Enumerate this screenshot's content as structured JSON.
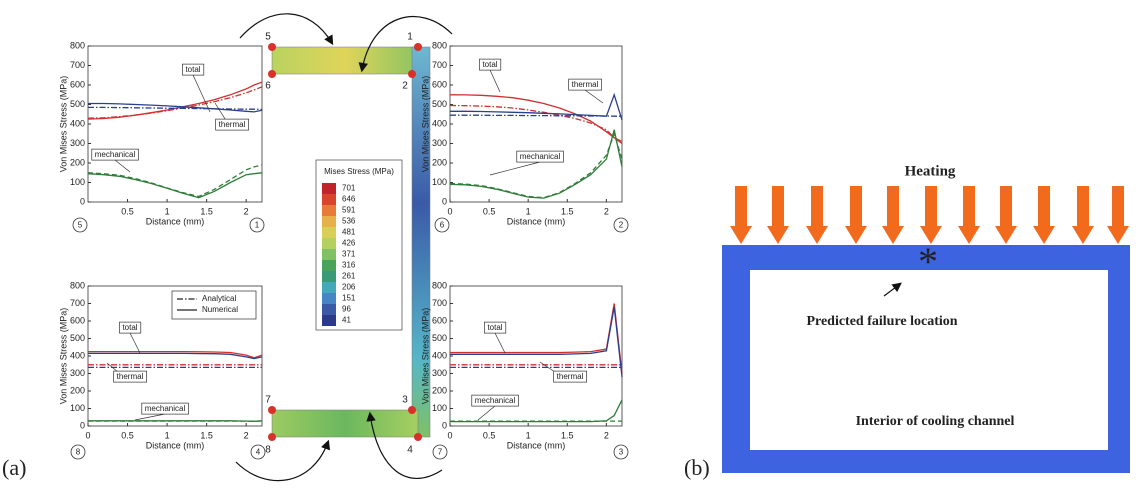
{
  "chart_data": [
    {
      "type": "line",
      "xlabel": "Distance (mm)",
      "ylabel": "Von Mises Stress (MPa)",
      "xlim": [
        0,
        2.2
      ],
      "ylim": [
        0,
        800
      ],
      "xticks": [
        0.5,
        1,
        1.5,
        2
      ],
      "yticks": [
        0,
        100,
        200,
        300,
        400,
        500,
        600,
        700,
        800
      ],
      "x": [
        0,
        0.2,
        0.4,
        0.6,
        0.8,
        1,
        1.2,
        1.4,
        1.6,
        1.8,
        2,
        2.1,
        2.2
      ],
      "series": [
        {
          "color": "#d03030",
          "style": "solid",
          "values": [
            425,
            428,
            435,
            445,
            458,
            472,
            488,
            505,
            525,
            550,
            580,
            600,
            615
          ]
        },
        {
          "color": "#d03030",
          "style": "dashdot",
          "values": [
            430,
            432,
            438,
            446,
            456,
            468,
            482,
            497,
            515,
            535,
            560,
            575,
            590
          ]
        },
        {
          "color": "#2b3f8f",
          "style": "solid",
          "values": [
            505,
            505,
            503,
            500,
            497,
            493,
            488,
            483,
            478,
            472,
            465,
            462,
            470
          ]
        },
        {
          "color": "#2b3f8f",
          "style": "dashdot",
          "values": [
            485,
            485,
            484,
            483,
            482,
            481,
            480,
            479,
            478,
            477,
            476,
            476,
            475
          ]
        },
        {
          "color": "#2e7d3a",
          "style": "solid",
          "values": [
            145,
            140,
            132,
            115,
            95,
            70,
            45,
            22,
            55,
            100,
            140,
            145,
            150
          ]
        },
        {
          "color": "#2e7d3a",
          "style": "dashed",
          "values": [
            150,
            145,
            137,
            120,
            98,
            72,
            48,
            28,
            65,
            115,
            165,
            180,
            190
          ]
        }
      ],
      "annotations": [
        "total",
        "thermal",
        "mechanical"
      ],
      "nodes": [
        "5",
        "1"
      ]
    },
    {
      "type": "line",
      "xlabel": "Distance (mm)",
      "ylabel": "Von Mises Stress (MPa)",
      "xlim": [
        0,
        2.2
      ],
      "ylim": [
        0,
        800
      ],
      "xticks": [
        0,
        0.5,
        1,
        1.5,
        2
      ],
      "yticks": [
        0,
        100,
        200,
        300,
        400,
        500,
        600,
        700,
        800
      ],
      "x": [
        0,
        0.2,
        0.4,
        0.6,
        0.8,
        1,
        1.2,
        1.4,
        1.6,
        1.8,
        2,
        2.1,
        2.2
      ],
      "series": [
        {
          "color": "#d03030",
          "style": "solid",
          "values": [
            550,
            549,
            547,
            542,
            535,
            522,
            505,
            482,
            452,
            415,
            360,
            330,
            300
          ]
        },
        {
          "color": "#d03030",
          "style": "dashdot",
          "values": [
            495,
            494,
            492,
            488,
            482,
            472,
            460,
            445,
            428,
            405,
            370,
            330,
            310
          ]
        },
        {
          "color": "#2b3f8f",
          "style": "solid",
          "values": [
            465,
            465,
            464,
            462,
            460,
            458,
            455,
            452,
            448,
            444,
            440,
            550,
            420
          ]
        },
        {
          "color": "#2b3f8f",
          "style": "dashdot",
          "values": [
            445,
            445,
            445,
            444,
            444,
            443,
            443,
            442,
            442,
            441,
            441,
            440,
            440
          ]
        },
        {
          "color": "#2e7d3a",
          "style": "solid",
          "values": [
            90,
            88,
            80,
            65,
            45,
            25,
            20,
            45,
            90,
            140,
            220,
            370,
            180
          ]
        },
        {
          "color": "#2e7d3a",
          "style": "dashed",
          "values": [
            95,
            92,
            84,
            68,
            48,
            28,
            22,
            48,
            95,
            150,
            240,
            350,
            220
          ]
        }
      ],
      "annotations": [
        "total",
        "thermal",
        "mechanical"
      ],
      "nodes": [
        "6",
        "2"
      ]
    },
    {
      "type": "line",
      "xlabel": "Distance (mm)",
      "ylabel": "Von Mises Stress (MPa)",
      "xlim": [
        0,
        2.2
      ],
      "ylim": [
        0,
        800
      ],
      "xticks": [
        0,
        0.5,
        1,
        1.5,
        2
      ],
      "yticks": [
        0,
        100,
        200,
        300,
        400,
        500,
        600,
        700,
        800
      ],
      "x": [
        0,
        0.2,
        0.4,
        0.6,
        0.8,
        1,
        1.2,
        1.4,
        1.6,
        1.8,
        2,
        2.1,
        2.2
      ],
      "series": [
        {
          "color": "#d03030",
          "style": "solid",
          "values": [
            425,
            425,
            425,
            425,
            425,
            425,
            425,
            424,
            423,
            420,
            405,
            390,
            405
          ]
        },
        {
          "color": "#d03030",
          "style": "dashdot",
          "values": [
            350,
            350,
            350,
            350,
            350,
            350,
            350,
            350,
            350,
            350,
            350,
            350,
            350
          ]
        },
        {
          "color": "#2b3f8f",
          "style": "solid",
          "values": [
            415,
            415,
            415,
            415,
            415,
            415,
            415,
            414,
            413,
            410,
            395,
            385,
            395
          ]
        },
        {
          "color": "#2b3f8f",
          "style": "dashdot",
          "values": [
            335,
            335,
            335,
            335,
            335,
            335,
            335,
            335,
            335,
            335,
            335,
            335,
            335
          ]
        },
        {
          "color": "#2e7d3a",
          "style": "solid",
          "values": [
            30,
            30,
            30,
            30,
            30,
            30,
            30,
            30,
            30,
            30,
            28,
            27,
            30
          ]
        },
        {
          "color": "#2e7d3a",
          "style": "dashed",
          "values": [
            28,
            28,
            28,
            28,
            28,
            28,
            28,
            28,
            28,
            28,
            28,
            28,
            28
          ]
        }
      ],
      "annotations": [
        "total",
        "thermal",
        "mechanical"
      ],
      "nodes": [
        "8",
        "4"
      ],
      "legend": {
        "position": "upper right",
        "entries": [
          {
            "name": "Analytical",
            "style": "dashdot"
          },
          {
            "name": "Numerical",
            "style": "solid"
          }
        ]
      }
    },
    {
      "type": "line",
      "xlabel": "Distance (mm)",
      "ylabel": "Von Mises Stress (MPa)",
      "xlim": [
        0,
        2.2
      ],
      "ylim": [
        0,
        800
      ],
      "xticks": [
        0,
        0.5,
        1,
        1.5,
        2
      ],
      "yticks": [
        0,
        100,
        200,
        300,
        400,
        500,
        600,
        700,
        800
      ],
      "x": [
        0,
        0.2,
        0.4,
        0.6,
        0.8,
        1,
        1.2,
        1.4,
        1.6,
        1.8,
        2,
        2.1,
        2.2
      ],
      "series": [
        {
          "color": "#d03030",
          "style": "solid",
          "values": [
            420,
            420,
            420,
            420,
            420,
            420,
            420,
            420,
            422,
            425,
            440,
            700,
            300
          ]
        },
        {
          "color": "#d03030",
          "style": "dashdot",
          "values": [
            350,
            350,
            350,
            350,
            350,
            350,
            350,
            350,
            350,
            350,
            350,
            350,
            350
          ]
        },
        {
          "color": "#2b3f8f",
          "style": "solid",
          "values": [
            410,
            410,
            410,
            410,
            410,
            410,
            410,
            410,
            412,
            415,
            430,
            680,
            280
          ]
        },
        {
          "color": "#2b3f8f",
          "style": "dashdot",
          "values": [
            335,
            335,
            335,
            335,
            335,
            335,
            335,
            335,
            335,
            335,
            335,
            335,
            335
          ]
        },
        {
          "color": "#2e7d3a",
          "style": "solid",
          "values": [
            25,
            25,
            25,
            25,
            25,
            25,
            25,
            25,
            25,
            25,
            30,
            60,
            150
          ]
        },
        {
          "color": "#2e7d3a",
          "style": "dashed",
          "values": [
            28,
            28,
            28,
            28,
            28,
            28,
            28,
            28,
            28,
            28,
            28,
            28,
            28
          ]
        }
      ],
      "annotations": [
        "total",
        "thermal",
        "mechanical"
      ],
      "nodes": [
        "7",
        "3"
      ]
    }
  ],
  "panel_labels": [
    "(a)",
    "(b)"
  ],
  "contour_legend": {
    "title": "Mises Stress (MPa)",
    "levels": [
      701,
      646,
      591,
      536,
      481,
      426,
      371,
      316,
      261,
      206,
      151,
      96,
      41
    ],
    "colors": [
      "#c0232a",
      "#d8452c",
      "#e87a3a",
      "#e8b04a",
      "#d8cf58",
      "#b3d060",
      "#7fc164",
      "#4ba35b",
      "#3a9a78",
      "#43a9b8",
      "#4686c4",
      "#3a5aa8",
      "#2c3a8a"
    ]
  },
  "model_nodes": [
    "1",
    "2",
    "3",
    "4",
    "5",
    "6",
    "7",
    "8"
  ],
  "diagram": {
    "heating": "Heating",
    "marker": "*",
    "failure_label": "Predicted failure location",
    "interior_label": "Interior of cooling channel"
  }
}
